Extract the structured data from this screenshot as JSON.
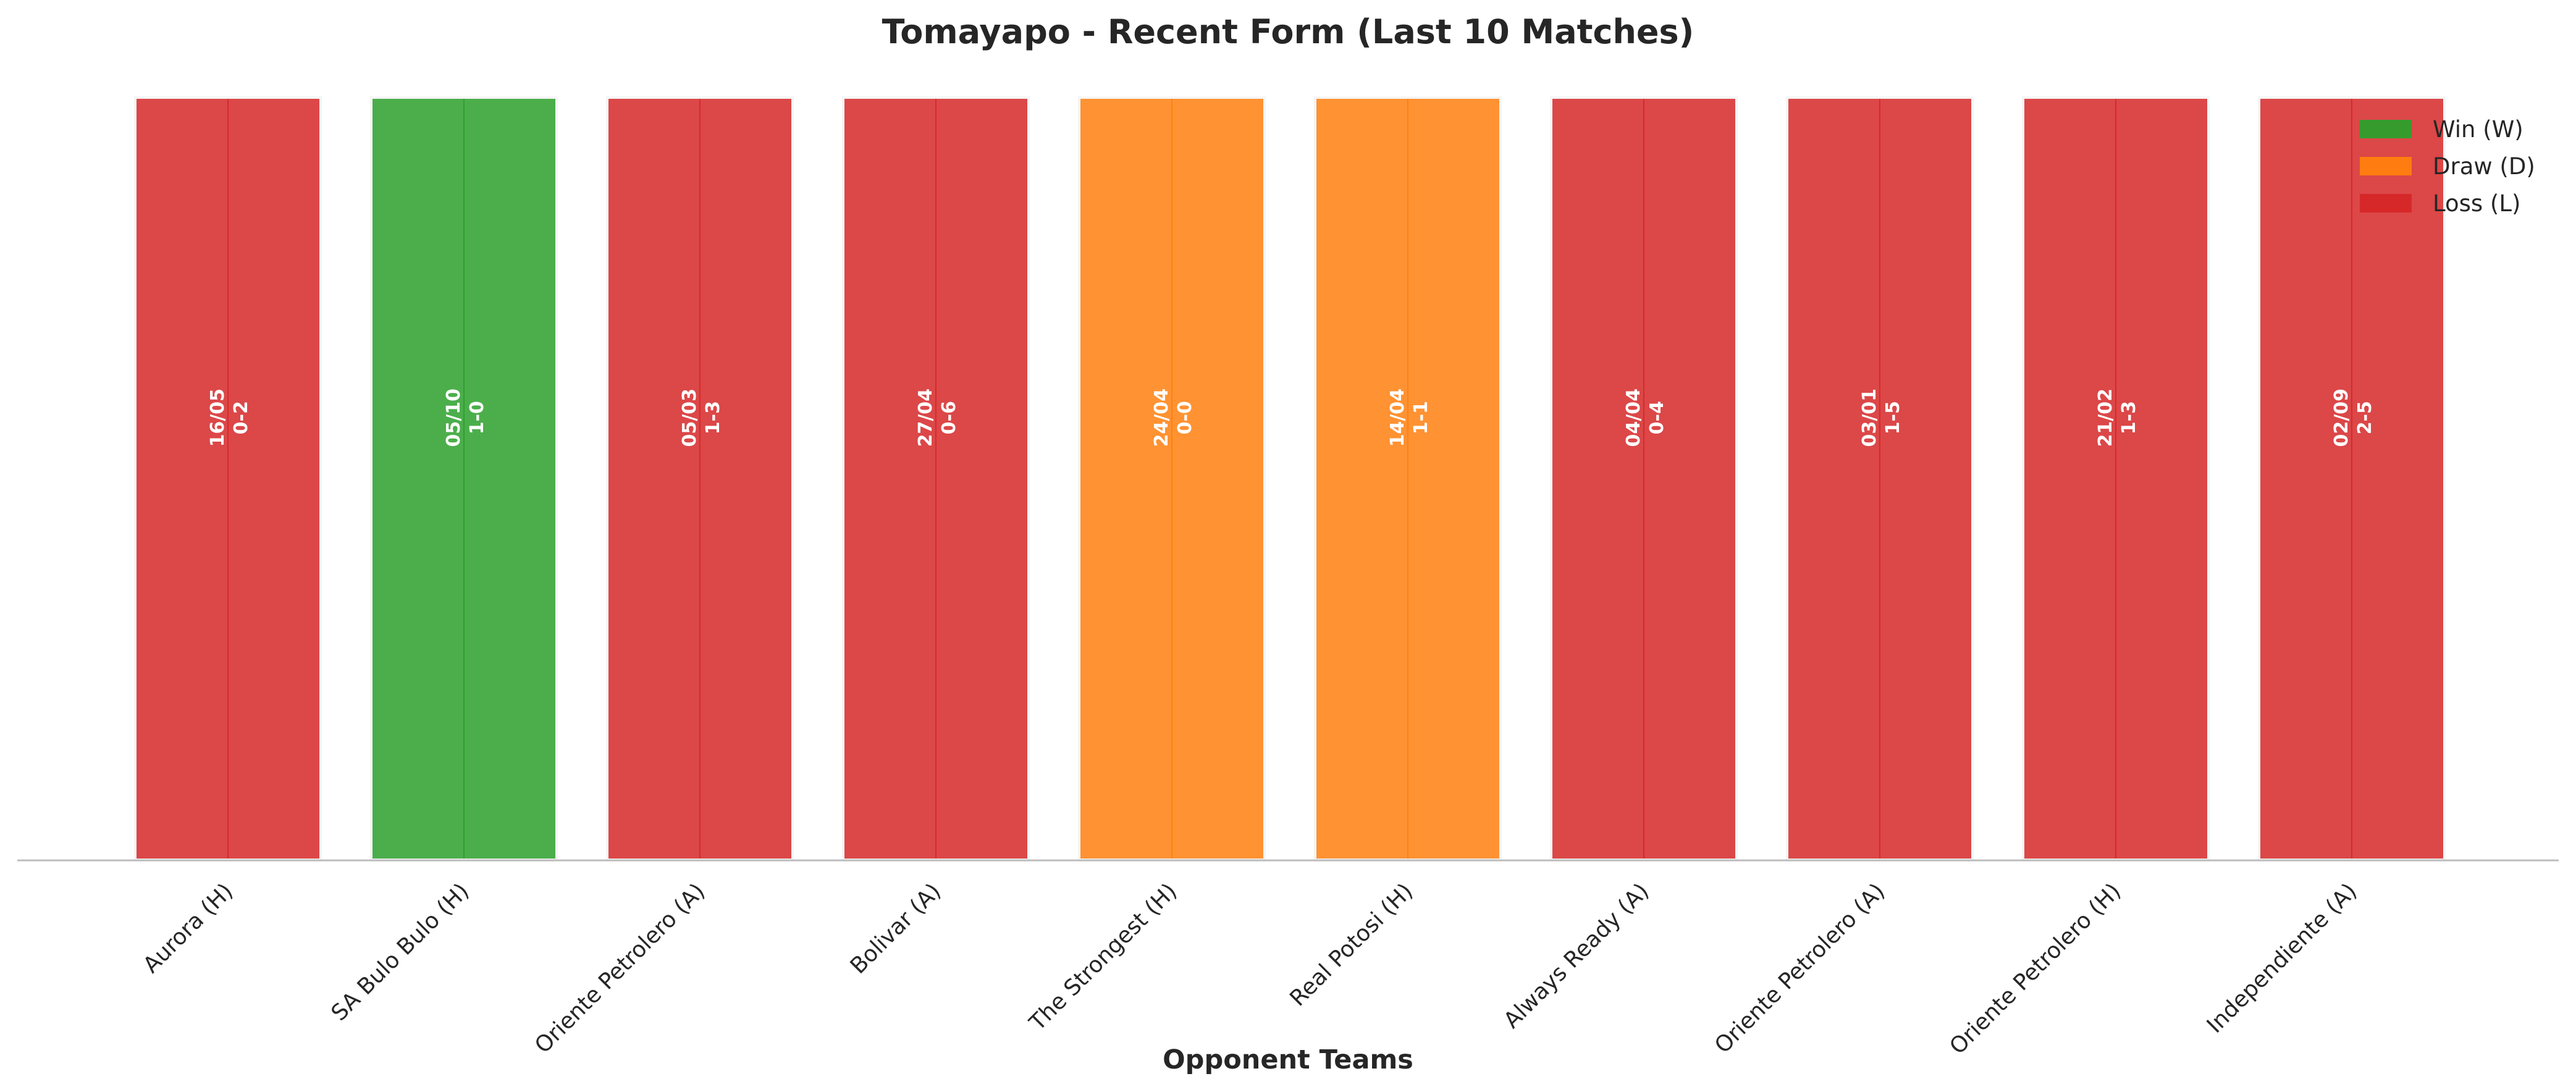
{
  "chart_data": {
    "type": "bar",
    "title": "Tomayapo - Recent Form (Last 10 Matches)",
    "xlabel": "Opponent Teams",
    "ylabel": "",
    "ylim": [
      0,
      1
    ],
    "grid": false,
    "legend_position": "top-right",
    "categories": [
      "Aurora (H)",
      "SA Bulo Bulo (H)",
      "Oriente Petrolero (A)",
      "Bolivar (A)",
      "The Strongest (H)",
      "Real Potosi (H)",
      "Always Ready (A)",
      "Oriente Petrolero (A)",
      "Oriente Petrolero (H)",
      "Independiente (A)"
    ],
    "values": [
      1,
      1,
      1,
      1,
      1,
      1,
      1,
      1,
      1,
      1
    ],
    "results": [
      "L",
      "W",
      "L",
      "L",
      "D",
      "D",
      "L",
      "L",
      "L",
      "L"
    ],
    "dates": [
      "16/05",
      "05/10",
      "05/03",
      "27/04",
      "24/04",
      "14/04",
      "04/04",
      "03/01",
      "21/02",
      "02/09"
    ],
    "scores": [
      "0-2",
      "1-0",
      "1-3",
      "0-6",
      "0-0",
      "1-1",
      "0-4",
      "1-5",
      "1-3",
      "2-5"
    ],
    "legend": [
      {
        "key": "W",
        "label": "Win (W)",
        "color": "#2ca02c"
      },
      {
        "key": "D",
        "label": "Draw (D)",
        "color": "#ff7f0e"
      },
      {
        "key": "L",
        "label": "Loss (L)",
        "color": "#d62728"
      }
    ]
  }
}
